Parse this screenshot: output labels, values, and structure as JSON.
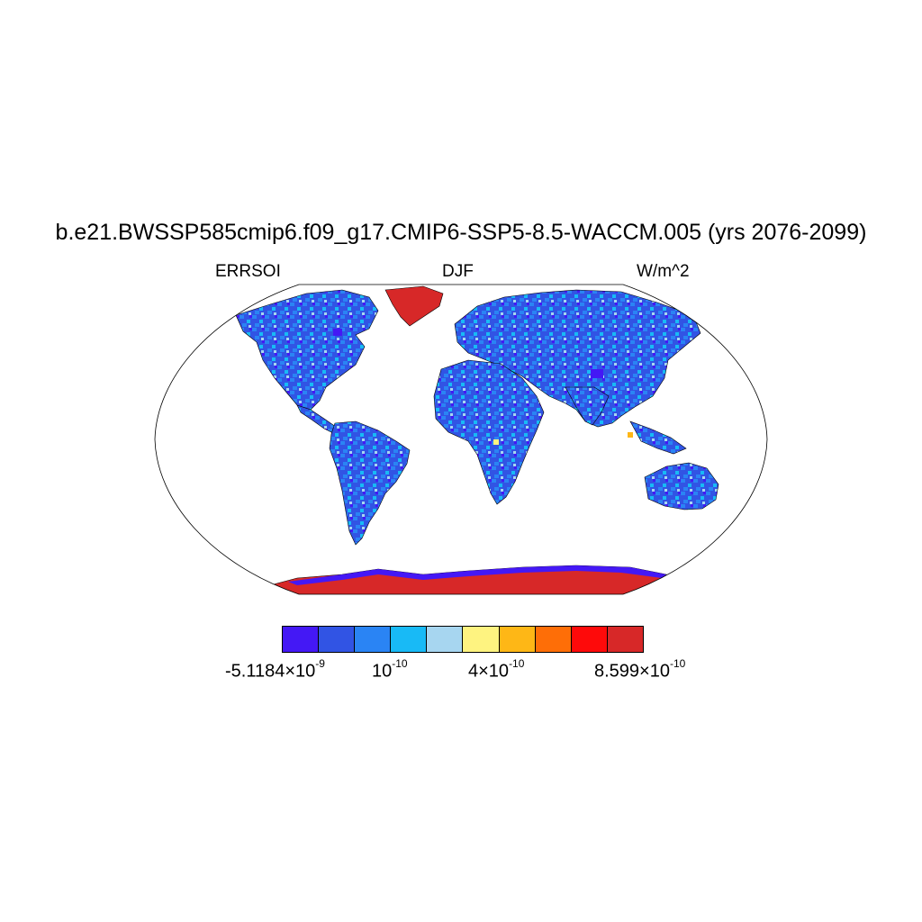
{
  "header": {
    "title": "b.e21.BWSSP585cmip6.f09_g17.CMIP6-SSP5-8.5-WACCM.005 (yrs 2076-2099)",
    "variable": "ERRSOI",
    "season": "DJF",
    "units": "W/m^2"
  },
  "colorbar": {
    "colors": [
      "#4418f5",
      "#3154e4",
      "#2a84f4",
      "#18baf6",
      "#a7d6f0",
      "#fef380",
      "#feb716",
      "#fe6e07",
      "#fe0a0a",
      "#d72828"
    ],
    "labels": [
      {
        "mantissa": "-5.1184×10",
        "exponent": "-9"
      },
      {
        "mantissa": "10",
        "exponent": "-10"
      },
      {
        "mantissa": "4×10",
        "exponent": "-10"
      },
      {
        "mantissa": "8.599×10",
        "exponent": "-10"
      }
    ]
  },
  "map": {
    "projection": "robinson",
    "land_fill_dominant": "#3154e4",
    "greenland_color": "#d72828",
    "antarctica_color": "#d72828"
  }
}
